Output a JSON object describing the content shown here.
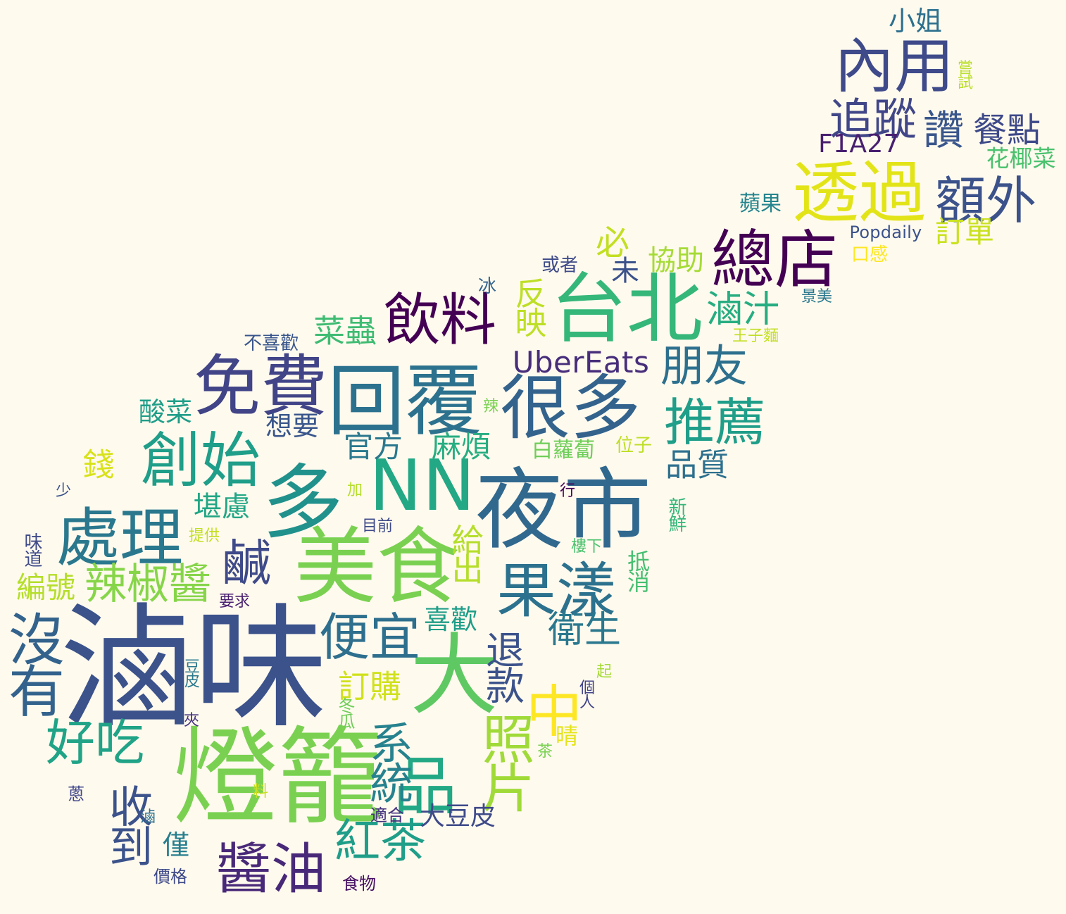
{
  "words": [
    {
      "text": "滷味",
      "color": "#3b528b"
    },
    {
      "text": "燈籠",
      "color": "#7ad151"
    },
    {
      "text": "夜市",
      "color": "#31688e"
    },
    {
      "text": "大",
      "color": "#5ec962"
    },
    {
      "text": "美食",
      "color": "#7ad151"
    },
    {
      "text": "回覆",
      "color": "#2c728e"
    },
    {
      "text": "多",
      "color": "#21918c"
    },
    {
      "text": "NN",
      "color": "#22a884"
    },
    {
      "text": "台北",
      "color": "#35b779"
    },
    {
      "text": "很多",
      "color": "#33638d"
    },
    {
      "text": "免費",
      "color": "#414487"
    },
    {
      "text": "透過",
      "color": "#e2e418"
    },
    {
      "text": "總店",
      "color": "#440154"
    },
    {
      "text": "內用",
      "color": "#3e4a89"
    },
    {
      "text": "處理",
      "color": "#2a788e"
    },
    {
      "text": "創始",
      "color": "#1f9e89"
    },
    {
      "text": "果漾",
      "color": "#2c728e"
    },
    {
      "text": "醬油",
      "color": "#482878"
    },
    {
      "text": "飲料",
      "color": "#440154"
    },
    {
      "text": "額外",
      "color": "#3b528b"
    },
    {
      "text": "推薦",
      "color": "#1f9e89"
    },
    {
      "text": "沒有",
      "color": "#33638d"
    },
    {
      "text": "品",
      "color": "#22a884"
    },
    {
      "text": "中",
      "color": "#fde725"
    },
    {
      "text": "照片",
      "color": "#a0da39"
    },
    {
      "text": "好吃",
      "color": "#20a386"
    },
    {
      "text": "便宜",
      "color": "#2e6f8e"
    },
    {
      "text": "紅茶",
      "color": "#1f9e89"
    },
    {
      "text": "鹹",
      "color": "#3e4a89"
    },
    {
      "text": "辣椒醬",
      "color": "#86d549"
    },
    {
      "text": "收到",
      "color": "#3b528b"
    },
    {
      "text": "朋友",
      "color": "#2d708e"
    },
    {
      "text": "系統",
      "color": "#26828e"
    },
    {
      "text": "追蹤",
      "color": "#404688"
    },
    {
      "text": "讚",
      "color": "#39568c"
    },
    {
      "text": "餐點",
      "color": "#3e4989"
    },
    {
      "text": "UberEats",
      "color": "#472d7b"
    },
    {
      "text": "F1A27",
      "color": "#481f70"
    },
    {
      "text": "滷汁",
      "color": "#26ad81"
    },
    {
      "text": "退款",
      "color": "#3b528b"
    },
    {
      "text": "衛生",
      "color": "#2a788e"
    },
    {
      "text": "反映",
      "color": "#bddf26"
    },
    {
      "text": "菜蟲",
      "color": "#3fbc73"
    },
    {
      "text": "給出",
      "color": "#b5de2b"
    },
    {
      "text": "訂購",
      "color": "#d0e11c"
    },
    {
      "text": "品質",
      "color": "#2d708e"
    },
    {
      "text": "堪慮",
      "color": "#21a685"
    },
    {
      "text": "編號",
      "color": "#b5de2b"
    },
    {
      "text": "錢",
      "color": "#d8e219"
    },
    {
      "text": "必",
      "color": "#c2df23"
    },
    {
      "text": "官方",
      "color": "#2a788e"
    },
    {
      "text": "麻煩",
      "color": "#26ad81"
    },
    {
      "text": "喜歡",
      "color": "#1f9e89"
    },
    {
      "text": "協助",
      "color": "#a5db36"
    },
    {
      "text": "未",
      "color": "#3b528b"
    },
    {
      "text": "晴",
      "color": "#e5e419"
    },
    {
      "text": "訂單",
      "color": "#cae11f"
    },
    {
      "text": "小姐",
      "color": "#2d708e"
    },
    {
      "text": "花椰菜",
      "color": "#4ac16d"
    },
    {
      "text": "酸菜",
      "color": "#1f9e89"
    },
    {
      "text": "想要",
      "color": "#39568c"
    },
    {
      "text": "僅",
      "color": "#277f8e"
    },
    {
      "text": "大豆皮",
      "color": "#3e4a89"
    },
    {
      "text": "白蘿蔔",
      "color": "#6ece58"
    },
    {
      "text": "抵消",
      "color": "#44bf70"
    },
    {
      "text": "蘋果",
      "color": "#25858e"
    },
    {
      "text": "Popdaily",
      "color": "#3b528b"
    },
    {
      "text": "口感",
      "color": "#fde725"
    },
    {
      "text": "新鮮",
      "color": "#35b779"
    },
    {
      "text": "位子",
      "color": "#bddf26"
    },
    {
      "text": "嘗試",
      "color": "#b8de29"
    },
    {
      "text": "或者",
      "color": "#3e4a89"
    },
    {
      "text": "冰",
      "color": "#33638d"
    },
    {
      "text": "景美",
      "color": "#2a788e"
    },
    {
      "text": "王子麵",
      "color": "#c2df23"
    },
    {
      "text": "不喜歡",
      "color": "#39568c"
    },
    {
      "text": "辣",
      "color": "#7ad151"
    },
    {
      "text": "少",
      "color": "#3b528b"
    },
    {
      "text": "加",
      "color": "#b5de2b"
    },
    {
      "text": "目前",
      "color": "#3e4a89"
    },
    {
      "text": "行",
      "color": "#440154"
    },
    {
      "text": "味道",
      "color": "#3e4a89"
    },
    {
      "text": "提供",
      "color": "#c2df23"
    },
    {
      "text": "樓下",
      "color": "#4ac16d"
    },
    {
      "text": "要求",
      "color": "#481f70"
    },
    {
      "text": "豆皮",
      "color": "#2a788e"
    },
    {
      "text": "起",
      "color": "#a5db36"
    },
    {
      "text": "個人",
      "color": "#414487"
    },
    {
      "text": "夾",
      "color": "#46337e"
    },
    {
      "text": "冬瓜",
      "color": "#6ece58"
    },
    {
      "text": "茶",
      "color": "#7ad151"
    },
    {
      "text": "蔥",
      "color": "#404688"
    },
    {
      "text": "料",
      "color": "#c8e020"
    },
    {
      "text": "滷",
      "color": "#2d708e"
    },
    {
      "text": "適合",
      "color": "#46337e"
    },
    {
      "text": "價格",
      "color": "#3e4a89"
    },
    {
      "text": "食物",
      "color": "#471164"
    }
  ]
}
